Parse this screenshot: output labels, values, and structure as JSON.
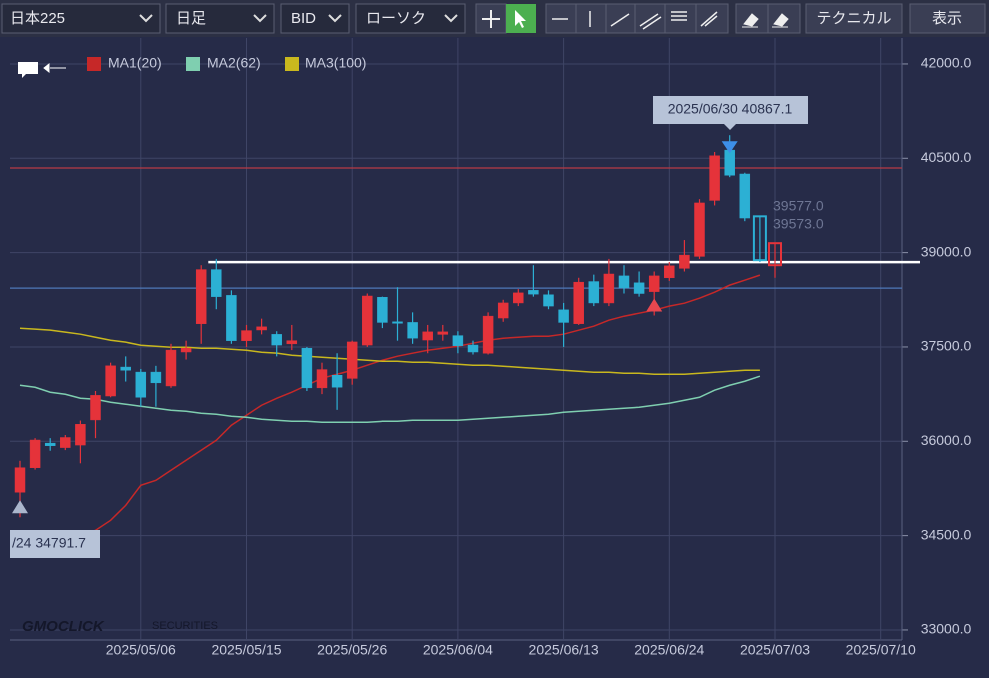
{
  "toolbar": {
    "selects": [
      "日本225",
      "日足",
      "BID",
      "ローソク"
    ],
    "buttons": [
      "テクニカル",
      "表示"
    ]
  },
  "chart_data": {
    "type": "candlestick",
    "categories": [
      null,
      null,
      null,
      null,
      null,
      null,
      null,
      null,
      "2025/05/06",
      null,
      null,
      null,
      null,
      null,
      null,
      "2025/05/15",
      null,
      null,
      null,
      null,
      null,
      null,
      "2025/05/26",
      null,
      null,
      null,
      null,
      null,
      null,
      "2025/06/04",
      null,
      null,
      null,
      null,
      null,
      null,
      "2025/06/13",
      null,
      null,
      null,
      null,
      null,
      null,
      "2025/06/24",
      null,
      null,
      null,
      null,
      null,
      null,
      "2025/07/03",
      null,
      null,
      null,
      null,
      null,
      null,
      "2025/07/10"
    ],
    "ohlc": {
      "open": [
        35190,
        35580,
        35970,
        35900,
        35940,
        36340,
        36720,
        37180,
        37100,
        37100,
        36880,
        37420,
        37870,
        38730,
        38320,
        37600,
        37770,
        37700,
        37550,
        37480,
        36850,
        37050,
        37000,
        37530,
        38290,
        37900,
        37890,
        37610,
        37700,
        37680,
        37530,
        37400,
        37960,
        38200,
        38400,
        38330,
        38090,
        37870,
        38540,
        38200,
        38630,
        38520,
        38380,
        38600,
        38750,
        38940,
        39830,
        40630,
        40250,
        39577,
        38800,
        null,
        null,
        null,
        null,
        null,
        null,
        null
      ],
      "high": [
        35690,
        36050,
        36050,
        36100,
        36330,
        36800,
        37250,
        37350,
        37150,
        37200,
        37550,
        37600,
        38800,
        38900,
        38400,
        37850,
        37950,
        37750,
        37850,
        37500,
        37250,
        37400,
        37600,
        38350,
        38300,
        38450,
        38050,
        37850,
        37850,
        37750,
        37600,
        38050,
        38250,
        38420,
        38800,
        38400,
        38200,
        38600,
        38650,
        38900,
        38800,
        38700,
        38700,
        38850,
        39200,
        39850,
        40600,
        40867.1,
        40270,
        39580,
        39150,
        null,
        null,
        null,
        null,
        null,
        null,
        null
      ],
      "low": [
        34791.7,
        35550,
        35850,
        35860,
        35650,
        36050,
        36700,
        36950,
        36550,
        36550,
        36850,
        37300,
        37550,
        38100,
        37550,
        37500,
        37700,
        37350,
        37450,
        36800,
        36750,
        36500,
        36900,
        37500,
        37800,
        37600,
        37550,
        37400,
        37600,
        37400,
        37380,
        37380,
        37900,
        38150,
        38300,
        38100,
        37500,
        37850,
        38150,
        38150,
        38350,
        38300,
        38000,
        38550,
        38700,
        38900,
        39750,
        40200,
        39500,
        38850,
        38600,
        null,
        null,
        null,
        null,
        null,
        null,
        null
      ],
      "close": [
        35580,
        36020,
        35930,
        36060,
        36270,
        36730,
        37200,
        37130,
        36700,
        36930,
        37450,
        37480,
        38730,
        38300,
        37600,
        37760,
        37820,
        37530,
        37600,
        36850,
        37140,
        36860,
        37580,
        38310,
        37890,
        37880,
        37640,
        37740,
        37740,
        37520,
        37420,
        37990,
        38200,
        38360,
        38340,
        38150,
        37890,
        38530,
        38200,
        38660,
        38440,
        38350,
        38630,
        38790,
        38960,
        39790,
        40540,
        40230,
        39550,
        38880,
        39150,
        null,
        null,
        null,
        null,
        null,
        null,
        null
      ]
    },
    "up_color": "#e5333a",
    "down_color": "#2cb0d4",
    "hollow": [
      49,
      50
    ],
    "series": [
      {
        "name": "MA1(20)",
        "color": "#c62828",
        "values": [
          34345,
          34361,
          34393,
          34424,
          34504,
          34584,
          34743,
          34981,
          35300,
          35379,
          35539,
          35698,
          35857,
          36016,
          36255,
          36414,
          36573,
          36684,
          36780,
          36891,
          37003,
          37066,
          37130,
          37210,
          37289,
          37353,
          37401,
          37448,
          37480,
          37512,
          37560,
          37607,
          37639,
          37655,
          37671,
          37671,
          37703,
          37767,
          37830,
          37926,
          37989,
          38037,
          38085,
          38149,
          38196,
          38276,
          38371,
          38483,
          38562,
          38642,
          null,
          null,
          null,
          null,
          null,
          null,
          null,
          null
        ]
      },
      {
        "name": "MA2(62)",
        "color": "#7fcfb0",
        "values": [
          36891,
          36859,
          36780,
          36748,
          36684,
          36668,
          36621,
          36589,
          36557,
          36525,
          36493,
          36477,
          36446,
          36430,
          36398,
          36382,
          36350,
          36334,
          36318,
          36318,
          36302,
          36302,
          36302,
          36302,
          36318,
          36318,
          36334,
          36334,
          36334,
          36334,
          36350,
          36366,
          36382,
          36398,
          36414,
          36430,
          36462,
          36477,
          36493,
          36509,
          36525,
          36541,
          36573,
          36605,
          36653,
          36700,
          36812,
          36891,
          36955,
          37035,
          null,
          null,
          null,
          null,
          null,
          null,
          null,
          null
        ]
      },
      {
        "name": "MA3(100)",
        "color": "#c9b81e",
        "values": [
          37798,
          37783,
          37767,
          37735,
          37703,
          37655,
          37607,
          37576,
          37528,
          37512,
          37496,
          37496,
          37480,
          37480,
          37464,
          37448,
          37416,
          37401,
          37369,
          37353,
          37337,
          37321,
          37305,
          37289,
          37273,
          37273,
          37257,
          37257,
          37241,
          37225,
          37210,
          37210,
          37194,
          37178,
          37162,
          37146,
          37130,
          37114,
          37098,
          37098,
          37082,
          37082,
          37066,
          37066,
          37066,
          37082,
          37098,
          37114,
          37130,
          37130,
          null,
          null,
          null,
          null,
          null,
          null,
          null,
          null
        ]
      }
    ],
    "ylim": [
      32500,
      42400
    ],
    "yticks": [
      {
        "value": 33000,
        "label": "33000.0"
      },
      {
        "value": 34500,
        "label": "34500.0"
      },
      {
        "value": 36000,
        "label": "36000.0"
      },
      {
        "value": 37500,
        "label": "37500.0"
      },
      {
        "value": 39000,
        "label": "39000.0"
      },
      {
        "value": 40500,
        "label": "40500.0"
      },
      {
        "value": 42000,
        "label": "42000.0"
      }
    ],
    "grid": true,
    "hlines": [
      {
        "value": 40345,
        "color": "#b83a44"
      },
      {
        "value": 38435,
        "color": "#4f78b8"
      },
      {
        "value": 38849,
        "color": "#ffffff",
        "from": 13
      }
    ],
    "markers": [
      {
        "index": 47,
        "shape": "down",
        "color": "#3d8fe8"
      },
      {
        "index": 42,
        "shape": "up",
        "color": "#e8474f"
      },
      {
        "index": 0,
        "shape": "up",
        "color": "#aab6cc"
      }
    ],
    "high_label": "2025/06/30 40867.1",
    "low_label": "/24 34791.7",
    "price_labels": [
      "39577.0",
      "39573.0"
    ],
    "watermark": [
      "GMOCLICK",
      "SECURITIES"
    ]
  }
}
